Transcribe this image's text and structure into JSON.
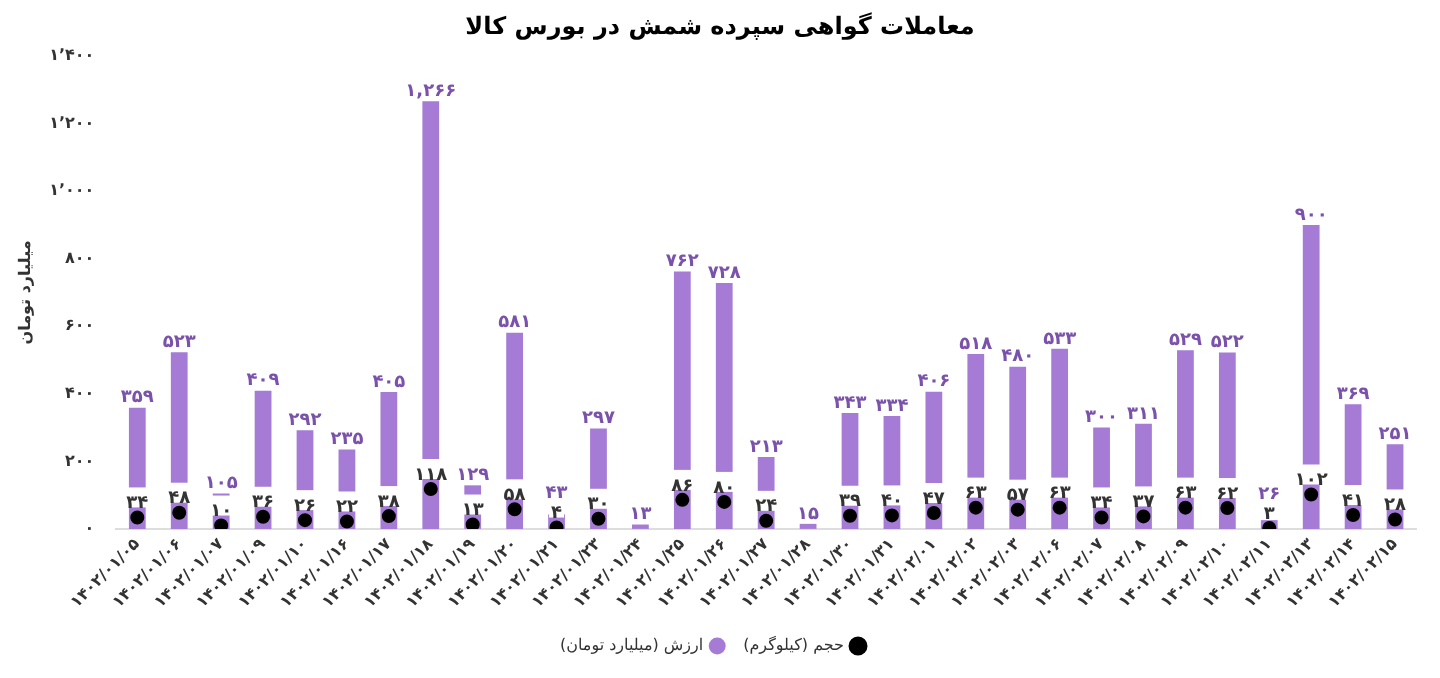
{
  "chart_data": {
    "type": "bar",
    "title": "معاملات گواهی سپرده شمش در بورس کالا",
    "ylabel": "میلیارد تومان",
    "categories": [
      "۱۴۰۲/۰۱/۰۵",
      "۱۴۰۲/۰۱/۰۶",
      "۱۴۰۲/۰۱/۰۷",
      "۱۴۰۲/۰۱/۰۹",
      "۱۴۰۲/۰۱/۱۰",
      "۱۴۰۲/۰۱/۱۶",
      "۱۴۰۲/۰۱/۱۷",
      "۱۴۰۲/۰۱/۱۸",
      "۱۴۰۲/۰۱/۱۹",
      "۱۴۰۲/۰۱/۲۰",
      "۱۴۰۲/۰۱/۲۱",
      "۱۴۰۲/۰۱/۲۳",
      "۱۴۰۲/۰۱/۲۴",
      "۱۴۰۲/۰۱/۲۵",
      "۱۴۰۲/۰۱/۲۶",
      "۱۴۰۲/۰۱/۲۷",
      "۱۴۰۲/۰۱/۲۸",
      "۱۴۰۲/۰۱/۳۰",
      "۱۴۰۲/۰۱/۳۱",
      "۱۴۰۲/۰۲/۰۱",
      "۱۴۰۲/۰۲/۰۲",
      "۱۴۰۲/۰۲/۰۳",
      "۱۴۰۲/۰۲/۰۶",
      "۱۴۰۲/۰۲/۰۷",
      "۱۴۰۲/۰۲/۰۸",
      "۱۴۰۲/۰۲/۰۹",
      "۱۴۰۲/۰۲/۱۰",
      "۱۴۰۲/۰۲/۱۱",
      "۱۴۰۲/۰۲/۱۳",
      "۱۴۰۲/۰۲/۱۴",
      "۱۴۰۲/۰۲/۱۵"
    ],
    "series": [
      {
        "name": "ارزش (میلیارد تومان)",
        "color": "#a57bd6",
        "values": [
          359,
          523,
          105,
          409,
          292,
          235,
          405,
          1266,
          129,
          581,
          43,
          297,
          13,
          762,
          728,
          213,
          15,
          343,
          334,
          406,
          518,
          480,
          533,
          300,
          311,
          529,
          522,
          26,
          900,
          369,
          251
        ],
        "value_labels": [
          "۳۵۹",
          "۵۲۳",
          "۱۰۵",
          "۴۰۹",
          "۲۹۲",
          "۲۳۵",
          "۴۰۵",
          "۱,۲۶۶",
          "۱۲۹",
          "۵۸۱",
          "۴۳",
          "۲۹۷",
          "۱۳",
          "۷۶۲",
          "۷۲۸",
          "۲۱۳",
          "۱۵",
          "۳۴۳",
          "۳۳۴",
          "۴۰۶",
          "۵۱۸",
          "۴۸۰",
          "۵۳۳",
          "۳۰۰",
          "۳۱۱",
          "۵۲۹",
          "۵۲۲",
          "۲۶",
          "۹۰۰",
          "۳۶۹",
          "۲۵۱"
        ]
      },
      {
        "name": "حجم (کیلوگرم)",
        "type": "scatter",
        "color": "#000000",
        "values": [
          34,
          48,
          10,
          36,
          26,
          22,
          38,
          118,
          13,
          58,
          4,
          30,
          null,
          86,
          80,
          24,
          null,
          39,
          40,
          47,
          63,
          57,
          63,
          34,
          37,
          63,
          62,
          3,
          102,
          41,
          28
        ],
        "value_labels": [
          "۳۴",
          "۴۸",
          "۱۰",
          "۳۶",
          "۲۶",
          "۲۲",
          "۳۸",
          "۱۱۸",
          "۱۳",
          "۵۸",
          "۴",
          "۳۰",
          null,
          "۸۶",
          "۸۰",
          "۲۴",
          null,
          "۳۹",
          "۴۰",
          "۴۷",
          "۶۳",
          "۵۷",
          "۶۳",
          "۳۴",
          "۳۷",
          "۶۳",
          "۶۲",
          "۳",
          "۱۰۲",
          "۴۱",
          "۲۸"
        ]
      }
    ],
    "ylim": [
      0,
      1400
    ],
    "yticks": [
      {
        "value": 0,
        "label": "۰"
      },
      {
        "value": 200,
        "label": "۲۰۰"
      },
      {
        "value": 400,
        "label": "۴۰۰"
      },
      {
        "value": 600,
        "label": "۶۰۰"
      },
      {
        "value": 800,
        "label": "۸۰۰"
      },
      {
        "value": 1000,
        "label": "۱٬۰۰۰"
      },
      {
        "value": 1200,
        "label": "۱٬۲۰۰"
      },
      {
        "value": 1400,
        "label": "۱٬۴۰۰"
      }
    ],
    "grid": false,
    "legend": "bottom",
    "marker": "circle"
  }
}
